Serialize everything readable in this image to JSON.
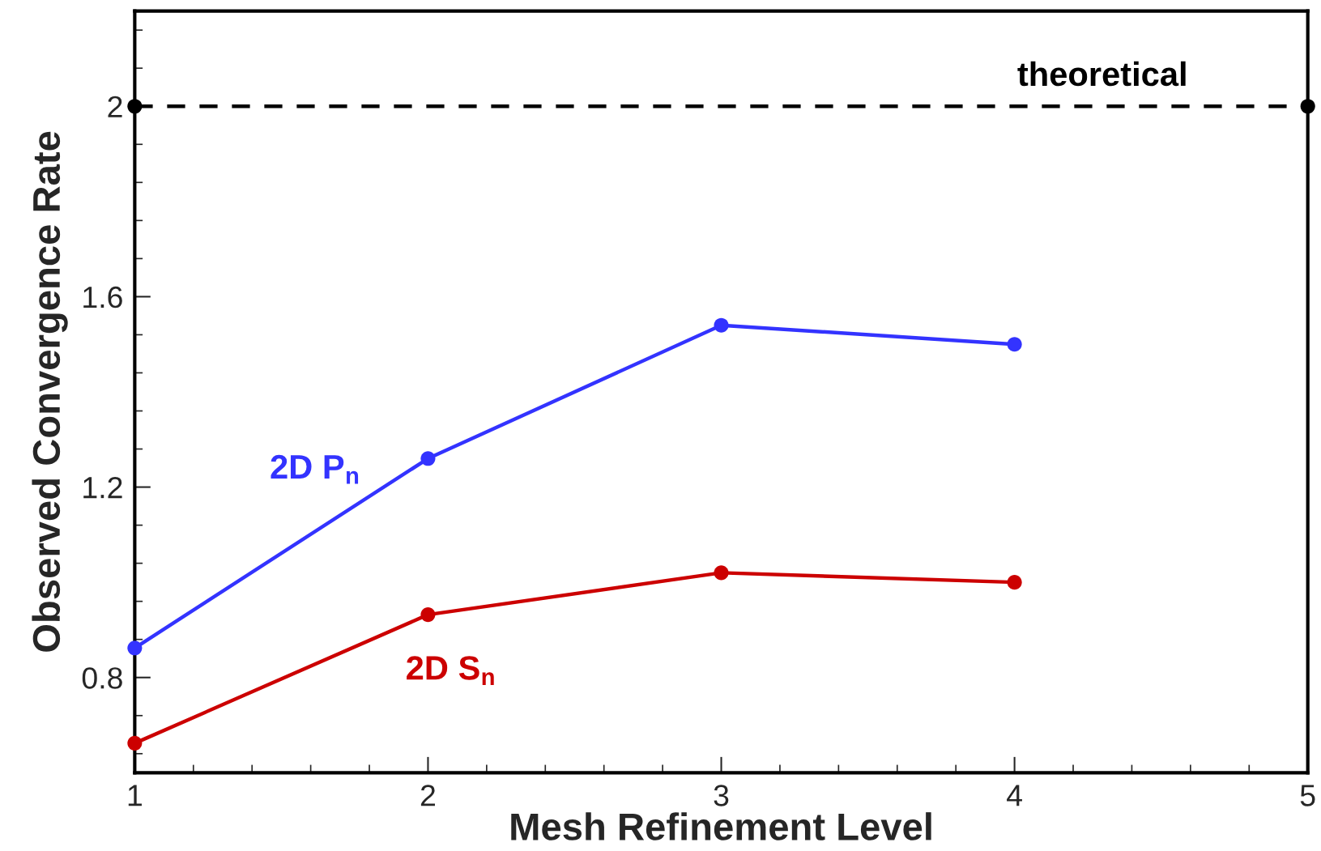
{
  "chart_data": {
    "type": "line",
    "xlabel": "Mesh Refinement Level",
    "ylabel": "Observed Convergence Rate",
    "x": [
      1,
      2,
      3,
      4
    ],
    "series": [
      {
        "name": "2D P$_{n}$",
        "color": "#3333ff",
        "values": [
          0.862,
          1.26,
          1.54,
          1.5
        ]
      },
      {
        "name": "2D S$_{n}$",
        "color": "#cc0000",
        "values": [
          0.662,
          0.932,
          1.02,
          1.0
        ]
      },
      {
        "type": "line",
        "line_style": "dashed",
        "color": "#000000",
        "x": [
          1,
          5
        ],
        "values": [
          2,
          2
        ]
      }
    ],
    "annotations": [
      {
        "text": "theoretical",
        "x": 4.3,
        "y": 2
      }
    ],
    "marker": "circle",
    "line_style": "solid",
    "grid": false,
    "legend": false,
    "xlim": [
      1,
      5
    ],
    "xticks": [
      1,
      2,
      3,
      4,
      5
    ],
    "ylim": [
      0.6,
      2.2
    ],
    "yticks": [
      0.8,
      1.2,
      1.6,
      2
    ]
  }
}
